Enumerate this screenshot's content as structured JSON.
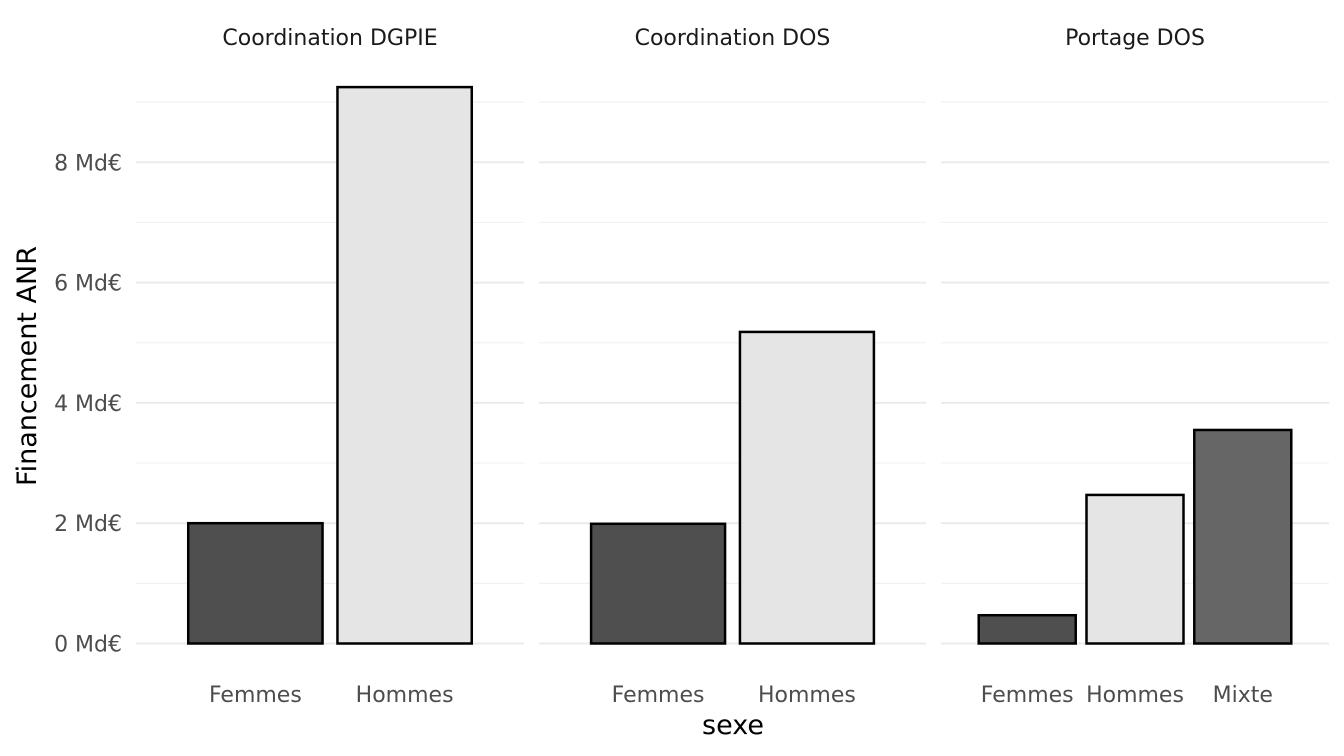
{
  "chart_data": {
    "type": "bar",
    "xlabel": "sexe",
    "ylabel": "Financement ANR",
    "ylim": [
      0,
      9.25
    ],
    "y_ticks": [
      0,
      2,
      4,
      6,
      8
    ],
    "y_minor_ticks": [
      1,
      3,
      5,
      7,
      9
    ],
    "y_tick_labels": [
      "0 Md€",
      "2 Md€",
      "4 Md€",
      "6 Md€",
      "8 Md€"
    ],
    "grid": true,
    "legend": "none",
    "fill_colors": {
      "Femmes": "#4f4f4f",
      "Hommes": "#e5e5e5",
      "Mixte": "#666666"
    },
    "facets": [
      {
        "title": "Coordination DGPIE",
        "categories": [
          "Femmes",
          "Hommes"
        ],
        "values": [
          2.0,
          9.25
        ]
      },
      {
        "title": "Coordination DOS",
        "categories": [
          "Femmes",
          "Hommes"
        ],
        "values": [
          1.99,
          5.18
        ]
      },
      {
        "title": "Portage DOS",
        "categories": [
          "Femmes",
          "Hommes",
          "Mixte"
        ],
        "values": [
          0.47,
          2.47,
          3.55
        ]
      }
    ]
  }
}
